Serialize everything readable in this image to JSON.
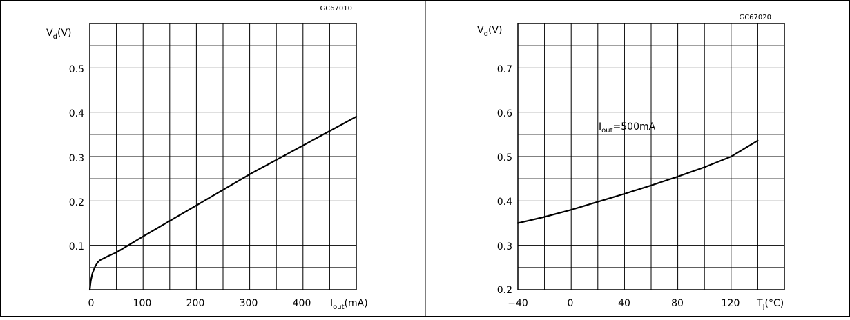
{
  "chart_data": [
    {
      "type": "line",
      "code": "GC67010",
      "ylabel_main": "V",
      "ylabel_sub": "d",
      "ylabel_unit": "(V)",
      "xlabel_main": "I",
      "xlabel_sub": "out",
      "xlabel_unit": "(mA)",
      "xlim": [
        0,
        500
      ],
      "ylim": [
        0,
        0.6
      ],
      "x_ticks": [
        "0",
        "100",
        "200",
        "300",
        "400"
      ],
      "y_ticks": [
        "0.1",
        "0.2",
        "0.3",
        "0.4",
        "0.5"
      ],
      "grid": true,
      "series": [
        {
          "x": [
            0,
            2,
            5,
            10,
            15,
            20,
            25,
            35,
            50,
            100,
            200,
            300,
            400,
            500
          ],
          "y": [
            0,
            0.02,
            0.037,
            0.052,
            0.062,
            0.067,
            0.07,
            0.076,
            0.084,
            0.12,
            0.19,
            0.26,
            0.325,
            0.39
          ]
        }
      ]
    },
    {
      "type": "line",
      "code": "GC67020",
      "ylabel_main": "V",
      "ylabel_sub": "d",
      "ylabel_unit": "(V)",
      "xlabel_main": "T",
      "xlabel_sub": "J",
      "xlabel_unit": "(°C)",
      "xlim": [
        -40,
        160
      ],
      "ylim": [
        0.2,
        0.8
      ],
      "x_ticks": [
        "−40",
        "0",
        "40",
        "80",
        "120"
      ],
      "y_ticks": [
        "0.2",
        "0.3",
        "0.4",
        "0.5",
        "0.6",
        "0.7"
      ],
      "grid": true,
      "annotation_main": "I",
      "annotation_sub": "out",
      "annotation_rest": "=500mA",
      "series": [
        {
          "x": [
            -40,
            -20,
            0,
            20,
            40,
            60,
            80,
            100,
            120,
            140
          ],
          "y": [
            0.35,
            0.364,
            0.38,
            0.398,
            0.416,
            0.435,
            0.455,
            0.476,
            0.5,
            0.536
          ]
        }
      ]
    }
  ]
}
